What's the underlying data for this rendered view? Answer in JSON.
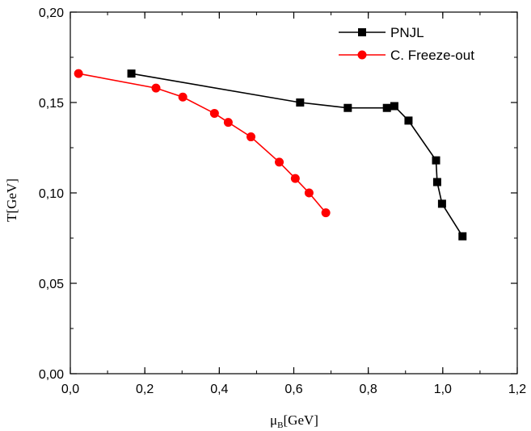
{
  "chart_data": {
    "type": "line",
    "xlabel": "μB[GeV]",
    "xlabel_symbol": "μ",
    "xlabel_sub": "B",
    "xlabel_unit": "[GeV]",
    "ylabel": "T[GeV]",
    "xlim": [
      0.0,
      1.2
    ],
    "ylim": [
      0.0,
      0.2
    ],
    "x_ticks": [
      {
        "value": 0.0,
        "label": "0,0"
      },
      {
        "value": 0.2,
        "label": "0,2"
      },
      {
        "value": 0.4,
        "label": "0,4"
      },
      {
        "value": 0.6,
        "label": "0,6"
      },
      {
        "value": 0.8,
        "label": "0,8"
      },
      {
        "value": 1.0,
        "label": "1,0"
      },
      {
        "value": 1.2,
        "label": "1,2"
      }
    ],
    "y_ticks": [
      {
        "value": 0.0,
        "label": "0,00"
      },
      {
        "value": 0.05,
        "label": "0,05"
      },
      {
        "value": 0.1,
        "label": "0,10"
      },
      {
        "value": 0.15,
        "label": "0,15"
      },
      {
        "value": 0.2,
        "label": "0,20"
      }
    ],
    "x_minor_step": 0.1,
    "y_minor_step": 0.025,
    "grid": false,
    "legend_position": "top-right",
    "series": [
      {
        "name": "PNJL",
        "color": "#000000",
        "marker": "square",
        "points": [
          [
            0.164,
            0.166
          ],
          [
            0.617,
            0.15
          ],
          [
            0.745,
            0.147
          ],
          [
            0.85,
            0.147
          ],
          [
            0.87,
            0.148
          ],
          [
            0.908,
            0.14
          ],
          [
            0.982,
            0.118
          ],
          [
            0.985,
            0.106
          ],
          [
            0.998,
            0.094
          ],
          [
            1.053,
            0.076
          ]
        ]
      },
      {
        "name": "C. Freeze-out",
        "color": "#ff0000",
        "marker": "circle",
        "points": [
          [
            0.022,
            0.166
          ],
          [
            0.23,
            0.158
          ],
          [
            0.302,
            0.153
          ],
          [
            0.387,
            0.144
          ],
          [
            0.424,
            0.139
          ],
          [
            0.485,
            0.131
          ],
          [
            0.561,
            0.117
          ],
          [
            0.604,
            0.108
          ],
          [
            0.641,
            0.1
          ],
          [
            0.686,
            0.089
          ]
        ]
      }
    ]
  }
}
